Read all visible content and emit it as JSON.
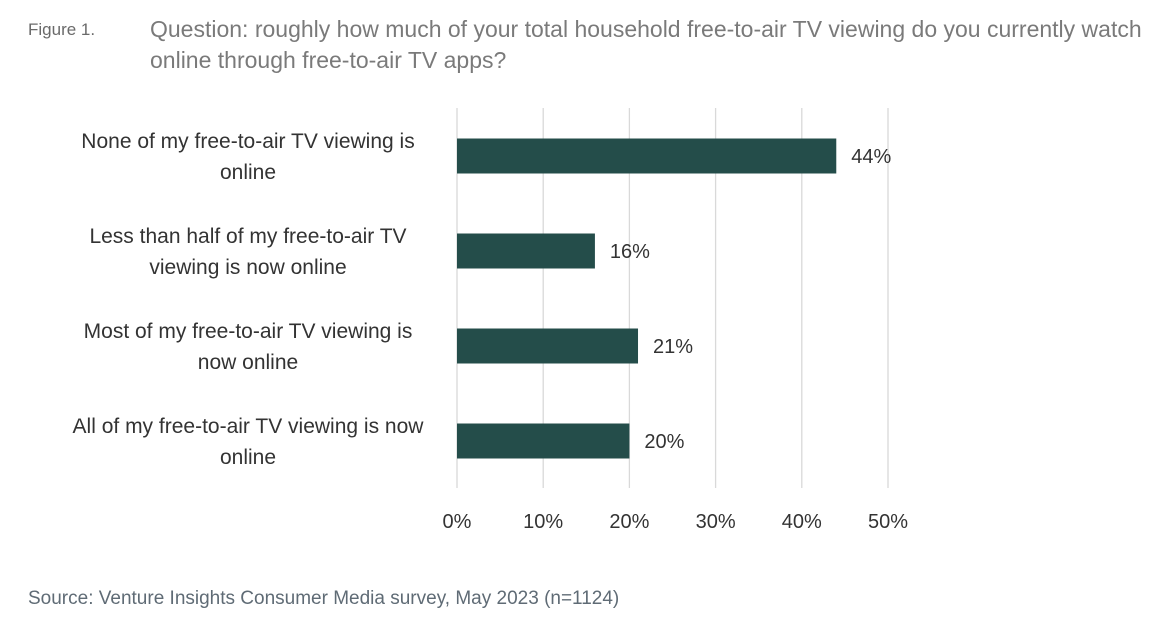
{
  "figure": {
    "label": "Figure 1.",
    "title": "Question: roughly how much of your total household free-to-air TV viewing do you currently watch online through free-to-air TV apps?"
  },
  "source": "Source: Venture Insights Consumer Media survey, May 2023 (n=1124)",
  "colors": {
    "bar": "#244d4a",
    "grid": "#d9d9d9"
  },
  "chart_data": {
    "type": "bar",
    "orientation": "horizontal",
    "categories": [
      [
        "None of my free-to-air TV viewing is",
        "online"
      ],
      [
        "Less than half of my free-to-air TV",
        "viewing is now online"
      ],
      [
        "Most of my free-to-air TV viewing is",
        "now online"
      ],
      [
        "All of my free-to-air TV viewing is now",
        "online"
      ]
    ],
    "values": [
      44,
      16,
      21,
      20
    ],
    "data_labels": [
      "44%",
      "16%",
      "21%",
      "20%"
    ],
    "xlim": [
      0,
      50
    ],
    "x_ticks": [
      0,
      10,
      20,
      30,
      40,
      50
    ],
    "x_tick_labels": [
      "0%",
      "10%",
      "20%",
      "30%",
      "40%",
      "50%"
    ],
    "grid": true,
    "legend": "none"
  }
}
